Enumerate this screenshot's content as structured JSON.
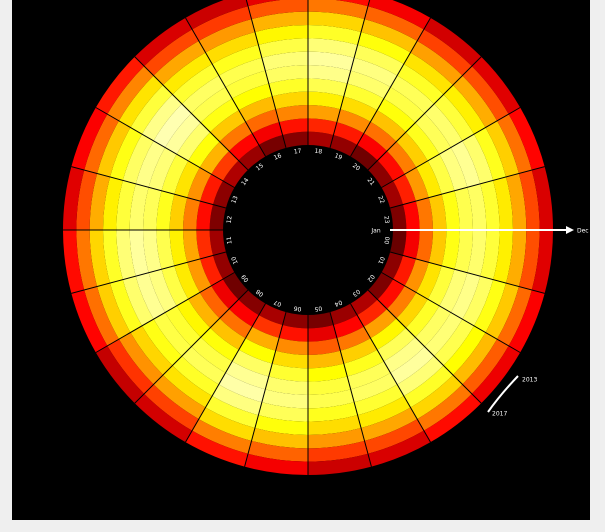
{
  "chart_data": {
    "type": "polar_heatmap",
    "categories": [
      "00",
      "01",
      "02",
      "03",
      "04",
      "05",
      "06",
      "07",
      "08",
      "09",
      "10",
      "11",
      "12",
      "13",
      "14",
      "15",
      "16",
      "17",
      "18",
      "19",
      "20",
      "21",
      "22",
      "23"
    ],
    "radial_labels": [
      "Jan",
      "Dec"
    ],
    "year_labels": [
      "2013",
      "2017"
    ],
    "colormap": "hot",
    "vlim": [
      0,
      100
    ],
    "values": [
      [
        15,
        20,
        18,
        25,
        22,
        17,
        20,
        24,
        19,
        16,
        21,
        23,
        18,
        20,
        25,
        22,
        17,
        19,
        24,
        21,
        16,
        20,
        23,
        18
      ],
      [
        35,
        40,
        38,
        42,
        37,
        33,
        39,
        44,
        36,
        34,
        41,
        43,
        38,
        40,
        45,
        37,
        35,
        39,
        42,
        40,
        36,
        38,
        41,
        37
      ],
      [
        52,
        58,
        55,
        60,
        54,
        50,
        57,
        62,
        53,
        51,
        59,
        61,
        55,
        58,
        63,
        54,
        52,
        56,
        60,
        57,
        53,
        55,
        59,
        54
      ],
      [
        66,
        70,
        68,
        73,
        67,
        64,
        69,
        74,
        65,
        63,
        71,
        72,
        67,
        70,
        75,
        66,
        64,
        68,
        72,
        69,
        65,
        67,
        71,
        66
      ],
      [
        76,
        80,
        78,
        83,
        77,
        74,
        79,
        84,
        75,
        73,
        81,
        82,
        77,
        80,
        85,
        76,
        74,
        78,
        82,
        79,
        75,
        77,
        81,
        76
      ],
      [
        82,
        86,
        84,
        88,
        83,
        80,
        85,
        89,
        81,
        79,
        87,
        88,
        83,
        86,
        90,
        82,
        80,
        84,
        88,
        85,
        81,
        83,
        87,
        82
      ],
      [
        85,
        88,
        86,
        90,
        84,
        82,
        87,
        91,
        83,
        81,
        89,
        90,
        85,
        88,
        92,
        84,
        82,
        86,
        90,
        87,
        83,
        85,
        89,
        84
      ],
      [
        80,
        84,
        82,
        86,
        79,
        77,
        83,
        87,
        78,
        76,
        85,
        86,
        80,
        84,
        88,
        79,
        77,
        81,
        86,
        83,
        78,
        80,
        85,
        79
      ],
      [
        72,
        76,
        74,
        78,
        71,
        69,
        75,
        79,
        70,
        68,
        77,
        78,
        72,
        76,
        80,
        71,
        69,
        73,
        78,
        75,
        70,
        72,
        77,
        71
      ],
      [
        62,
        66,
        64,
        68,
        61,
        59,
        65,
        69,
        60,
        58,
        67,
        68,
        62,
        66,
        70,
        61,
        59,
        63,
        68,
        65,
        60,
        62,
        67,
        61
      ],
      [
        48,
        52,
        50,
        54,
        47,
        45,
        51,
        55,
        46,
        44,
        53,
        54,
        48,
        52,
        56,
        47,
        45,
        49,
        54,
        51,
        46,
        48,
        53,
        47
      ],
      [
        32,
        36,
        34,
        38,
        31,
        29,
        35,
        39,
        30,
        28,
        37,
        38,
        32,
        36,
        40,
        31,
        29,
        33,
        38,
        35,
        30,
        32,
        37,
        31
      ]
    ]
  }
}
